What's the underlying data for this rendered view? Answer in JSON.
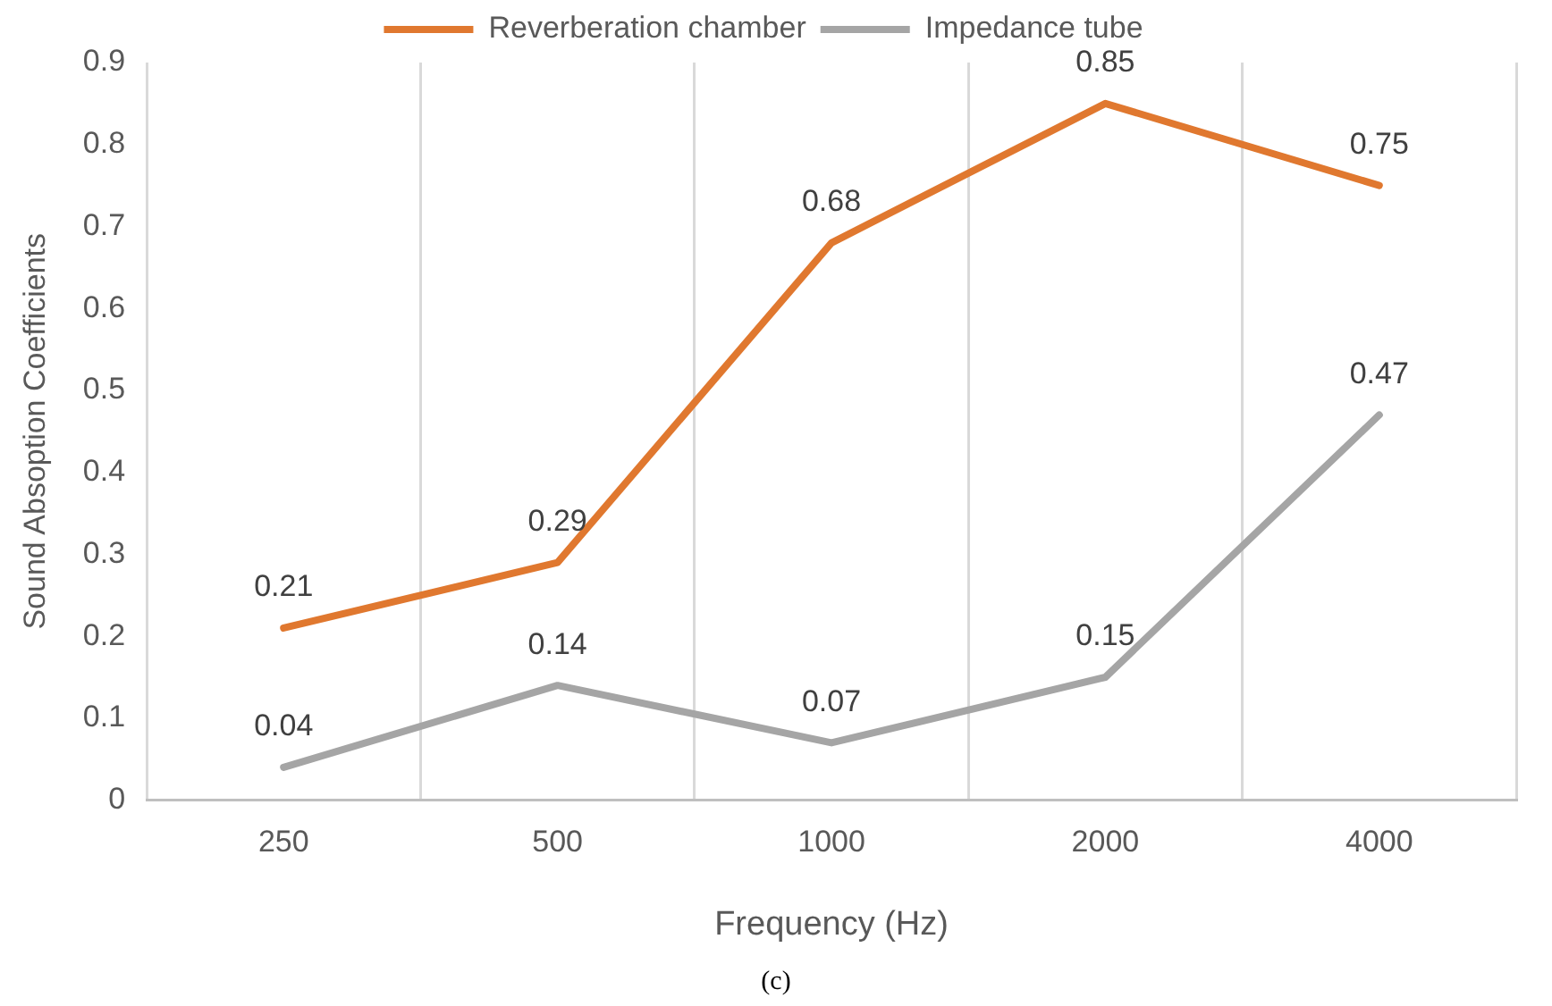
{
  "chart_data": {
    "type": "line",
    "xlabel": "Frequency (Hz)",
    "ylabel": "Sound Absoption Coefficients",
    "categories": [
      "250",
      "500",
      "1000",
      "2000",
      "4000"
    ],
    "series": [
      {
        "name": "Reverberation chamber",
        "color": "#e0782f",
        "values": [
          0.21,
          0.29,
          0.68,
          0.85,
          0.75
        ]
      },
      {
        "name": "Impedance tube",
        "color": "#a5a5a5",
        "values": [
          0.04,
          0.14,
          0.07,
          0.15,
          0.47
        ]
      }
    ],
    "ylim": [
      0,
      0.9
    ],
    "yticks": [
      0,
      0.1,
      0.2,
      0.3,
      0.4,
      0.5,
      0.6,
      0.7,
      0.8,
      0.9
    ],
    "grid": "x",
    "legend": "top",
    "marker": "none",
    "line_style": "solid",
    "data_labels": true,
    "annotations": [
      "(c)"
    ]
  }
}
